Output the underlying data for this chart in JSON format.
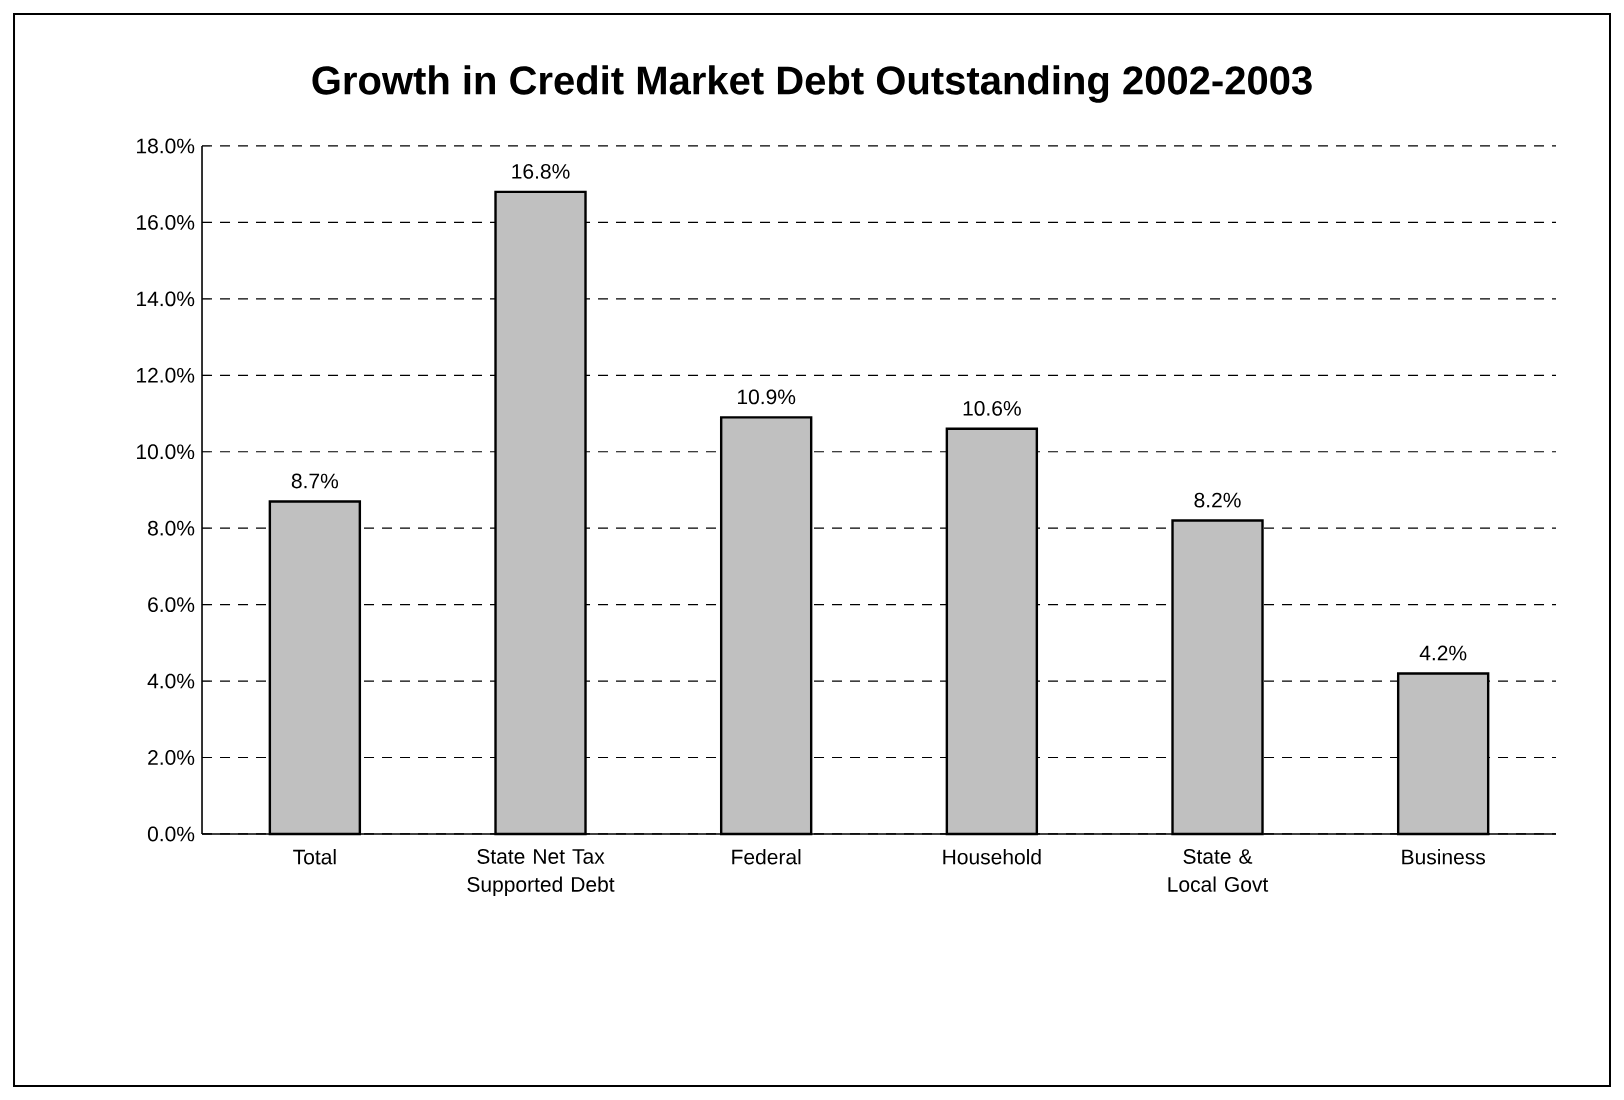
{
  "chart_data": {
    "type": "bar",
    "title": "Growth in Credit Market Debt Outstanding 2002-2003",
    "categories": [
      "Total",
      "State Net Tax Supported Debt",
      "Federal",
      "Household",
      "State & Local Govt",
      "Business"
    ],
    "values": [
      8.7,
      16.8,
      10.9,
      10.6,
      8.2,
      4.2
    ],
    "value_labels": [
      "8.7%",
      "16.8%",
      "10.9%",
      "10.6%",
      "8.2%",
      "4.2%"
    ],
    "color": "#c0c0c0",
    "ylim": [
      0,
      18
    ],
    "yticks": [
      {
        "value": 0,
        "label": "0.0%"
      },
      {
        "value": 2,
        "label": "2.0%"
      },
      {
        "value": 4,
        "label": "4.0%"
      },
      {
        "value": 6,
        "label": "6.0%"
      },
      {
        "value": 8,
        "label": "8.0%"
      },
      {
        "value": 10,
        "label": "10.0%"
      },
      {
        "value": 12,
        "label": "12.0%"
      },
      {
        "value": 14,
        "label": "14.0%"
      },
      {
        "value": 16,
        "label": "16.0%"
      },
      {
        "value": 18,
        "label": "18.0%"
      }
    ],
    "grid": "y"
  }
}
